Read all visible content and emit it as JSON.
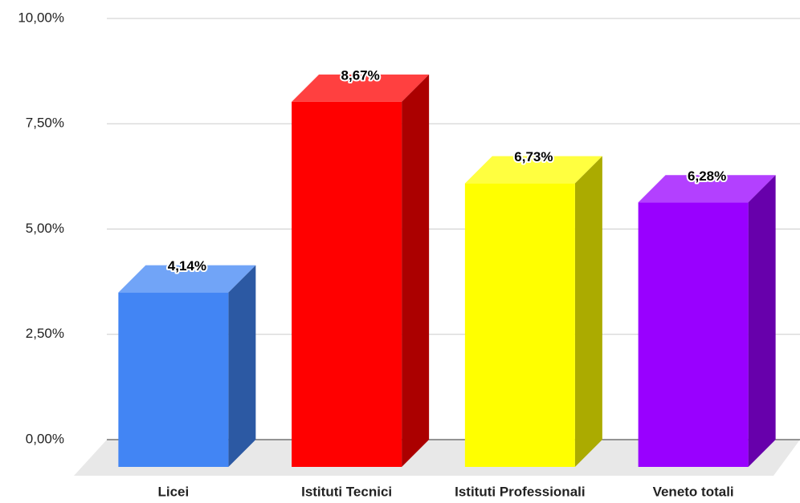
{
  "chart_data": {
    "type": "bar",
    "categories": [
      "Licei",
      "Istituti Tecnici",
      "Istituti Professionali",
      "Veneto totali"
    ],
    "values": [
      4.14,
      8.67,
      6.73,
      6.28
    ],
    "value_labels": [
      "4,14%",
      "8,67%",
      "6,73%",
      "6,28%"
    ],
    "colors": [
      "#4285f4",
      "#ff0000",
      "#ffff00",
      "#9900ff"
    ],
    "ylim": [
      0,
      10
    ],
    "yticks": [
      {
        "value": 0,
        "label": "0,00%"
      },
      {
        "value": 2.5,
        "label": "2,50%"
      },
      {
        "value": 5,
        "label": "5,00%"
      },
      {
        "value": 7.5,
        "label": "7,50%"
      },
      {
        "value": 10,
        "label": "10,00%"
      }
    ],
    "grid": true
  }
}
